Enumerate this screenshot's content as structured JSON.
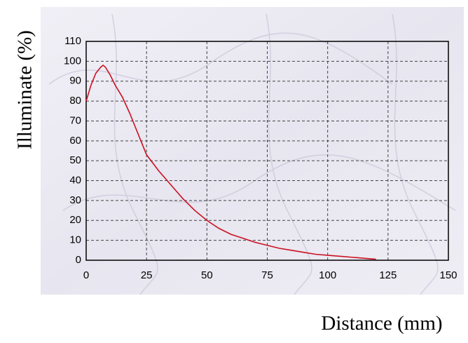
{
  "chart_data": {
    "type": "line",
    "x_label": "Distance (mm)",
    "y_label": "Illuminate (%)",
    "series": [
      {
        "color": "#cc1020",
        "x": [
          0,
          2,
          4,
          6,
          7,
          8,
          10,
          12,
          15,
          18,
          20,
          22,
          25,
          30,
          35,
          40,
          45,
          50,
          55,
          60,
          65,
          70,
          75,
          80,
          85,
          90,
          95,
          100,
          105,
          110,
          115,
          120
        ],
        "values": [
          80,
          88,
          94,
          97,
          98,
          97,
          93,
          88,
          82,
          74,
          68,
          62,
          53,
          45,
          38,
          31,
          25,
          20,
          16,
          13,
          11,
          9,
          7.5,
          6,
          5,
          4,
          3,
          2.5,
          2,
          1.5,
          1,
          0.5
        ]
      }
    ],
    "xlim": [
      0,
      150
    ],
    "xticks": [
      0,
      25,
      50,
      75,
      100,
      125,
      150
    ],
    "ylim": [
      0,
      110
    ],
    "yticks": [
      0,
      10,
      20,
      30,
      40,
      50,
      60,
      70,
      80,
      90,
      100,
      110
    ],
    "grid": true
  }
}
